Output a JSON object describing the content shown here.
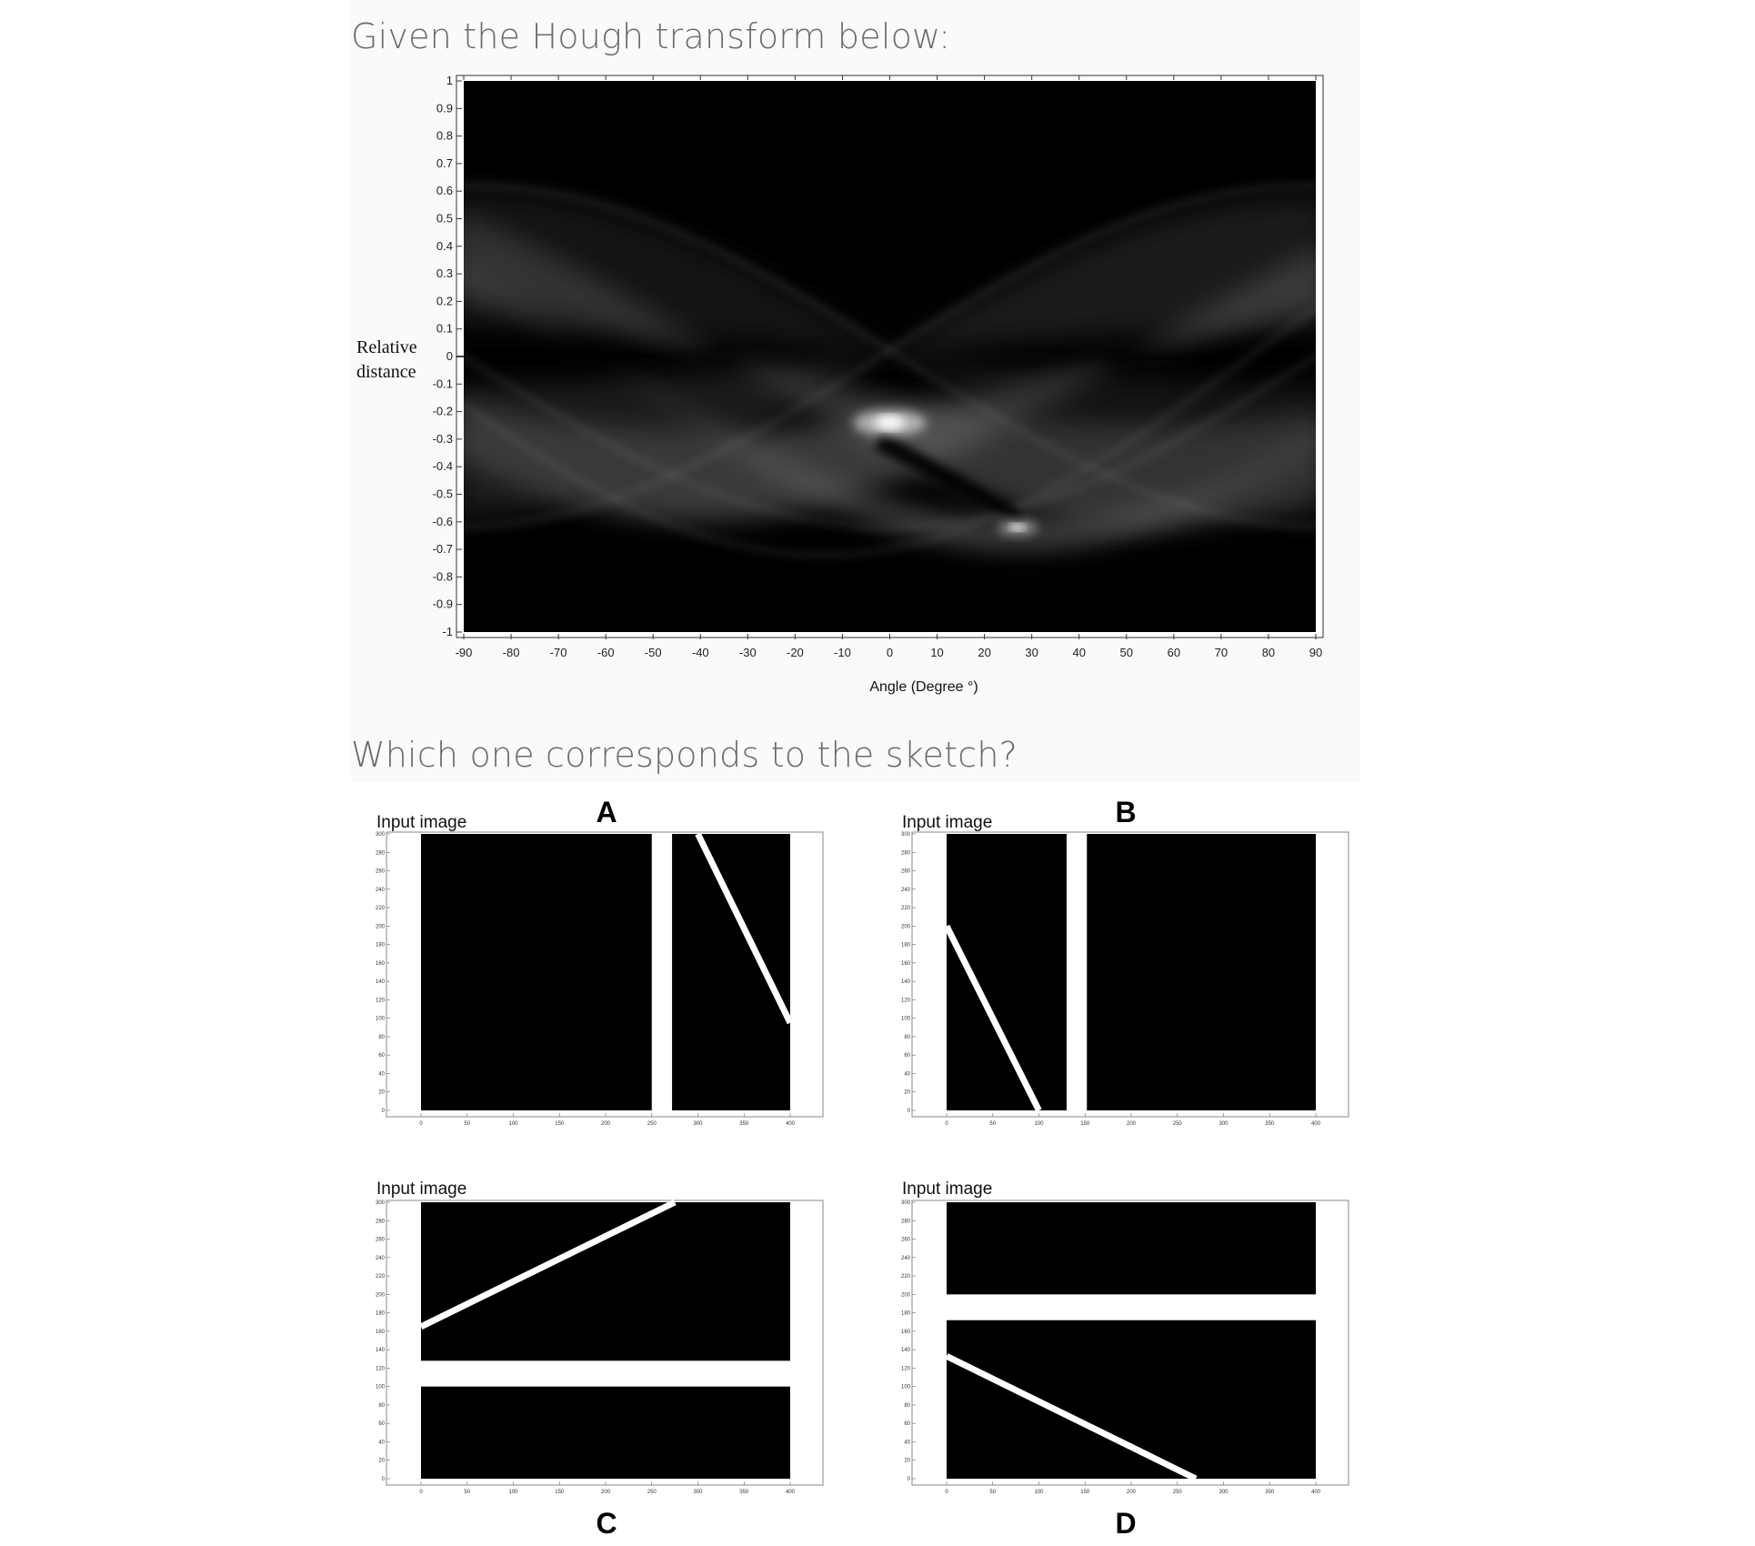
{
  "question_1": "Given the Hough transform below:",
  "question_2": "Which one corresponds to the sketch?",
  "hough": {
    "ylabel_line1": "Relative",
    "ylabel_line2": "distance",
    "xlabel": "Angle (Degree °)",
    "y_ticks": [
      "1",
      "0.9",
      "0.8",
      "0.7",
      "0.6",
      "0.5",
      "0.4",
      "0.3",
      "0.2",
      "0.1",
      "0",
      "-0.1",
      "-0.2",
      "-0.3",
      "-0.4",
      "-0.5",
      "-0.6",
      "-0.7",
      "-0.8",
      "-0.9",
      "-1"
    ],
    "x_ticks": [
      "-90",
      "-80",
      "-70",
      "-60",
      "-50",
      "-40",
      "-30",
      "-20",
      "-10",
      "0",
      "10",
      "20",
      "30",
      "40",
      "50",
      "60",
      "70",
      "80",
      "90"
    ],
    "xlim": [
      -90,
      90
    ],
    "ylim": [
      -1,
      1
    ],
    "bright_peaks": [
      {
        "angle": 0,
        "distance": -0.24
      },
      {
        "angle": 27,
        "distance": -0.62
      }
    ]
  },
  "options": [
    {
      "letter": "A",
      "title": "Input image"
    },
    {
      "letter": "B",
      "title": "Input image"
    },
    {
      "letter": "C",
      "title": "Input image"
    },
    {
      "letter": "D",
      "title": "Input image"
    }
  ],
  "input_axes": {
    "x_ticks": [
      "0",
      "50",
      "100",
      "150",
      "200",
      "250",
      "300",
      "350",
      "400"
    ],
    "y_ticks": [
      "300",
      "280",
      "260",
      "240",
      "220",
      "200",
      "180",
      "160",
      "140",
      "120",
      "100",
      "80",
      "60",
      "40",
      "20",
      "0"
    ],
    "xlim": [
      0,
      400
    ],
    "ylim": [
      0,
      300
    ]
  },
  "chart_data": {
    "type": "heatmap",
    "title": "",
    "xlabel": "Angle (Degree °)",
    "ylabel": "Relative distance",
    "xlim": [
      -90,
      90
    ],
    "ylim": [
      -1,
      1
    ],
    "peaks": [
      {
        "angle": 0,
        "distance": -0.24
      },
      {
        "angle": 27,
        "distance": -0.62
      }
    ]
  }
}
